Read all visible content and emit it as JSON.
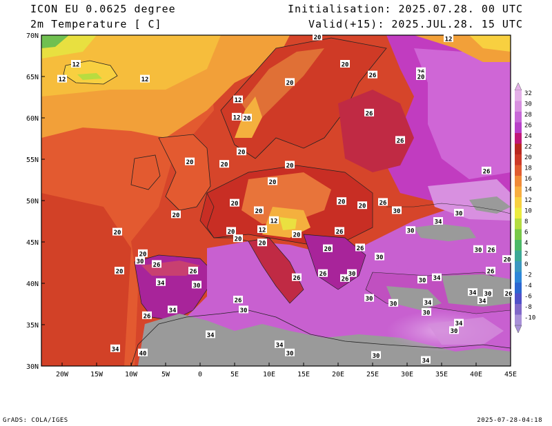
{
  "header": {
    "title_left_1": "ICON EU 0.0625 degree",
    "title_left_2": "2m Temperature [ C]",
    "title_right_1": "Initialisation: 2025.07.28. 00 UTC",
    "title_right_2": "Valid(+15): 2025.JUL.28. 15 UTC"
  },
  "footer": {
    "credit": "GrADS: COLA/IGES",
    "timestamp": "2025-07-28-04:18"
  },
  "map": {
    "lon_range": [
      -23,
      45
    ],
    "lat_range": [
      30,
      70
    ],
    "lon_ticks": [
      "20W",
      "15W",
      "10W",
      "5W",
      "0",
      "5E",
      "10E",
      "15E",
      "20E",
      "25E",
      "30E",
      "35E",
      "40E",
      "45E"
    ],
    "lat_ticks": [
      "70N",
      "65N",
      "60N",
      "55N",
      "50N",
      "45N",
      "40N",
      "35N",
      "30N"
    ],
    "colorbar": {
      "levels": [
        "32",
        "30",
        "28",
        "26",
        "24",
        "22",
        "20",
        "18",
        "16",
        "14",
        "12",
        "10",
        "8",
        "6",
        "4",
        "2",
        "0",
        "-2",
        "-4",
        "-6",
        "-8",
        "-10"
      ],
      "colors": [
        "#e4b0e8",
        "#d890e0",
        "#c868d8",
        "#b840c8",
        "#c01878",
        "#b82820",
        "#cc3a28",
        "#e05c30",
        "#f08a38",
        "#f8ae40",
        "#f8d040",
        "#ecec40",
        "#b4dc40",
        "#78c848",
        "#4cb868",
        "#3ca896",
        "#3c98c0",
        "#2e86d8",
        "#2c66d0",
        "#5050c8",
        "#8068c8",
        "#a890d8"
      ]
    },
    "contour_labels": [
      {
        "v": "20",
        "lon": 17,
        "lat": 69.8
      },
      {
        "v": "12",
        "lon": 36,
        "lat": 69.6
      },
      {
        "v": "20",
        "lon": 21,
        "lat": 66.5
      },
      {
        "v": "26",
        "lon": 25,
        "lat": 65.2
      },
      {
        "v": "26",
        "lon": 32,
        "lat": 65.6
      },
      {
        "v": "20",
        "lon": 32,
        "lat": 65
      },
      {
        "v": "12",
        "lon": -18,
        "lat": 66.5
      },
      {
        "v": "12",
        "lon": -20,
        "lat": 64.7
      },
      {
        "v": "12",
        "lon": -8,
        "lat": 64.7
      },
      {
        "v": "20",
        "lon": 13,
        "lat": 64.3
      },
      {
        "v": "12",
        "lon": 5.5,
        "lat": 62.2
      },
      {
        "v": "12",
        "lon": 5.3,
        "lat": 60.1
      },
      {
        "v": "20",
        "lon": 6.8,
        "lat": 60
      },
      {
        "v": "26",
        "lon": 24.5,
        "lat": 60.6
      },
      {
        "v": "26",
        "lon": 29,
        "lat": 57.3
      },
      {
        "v": "20",
        "lon": 6,
        "lat": 55.9
      },
      {
        "v": "20",
        "lon": -1.5,
        "lat": 54.7
      },
      {
        "v": "20",
        "lon": 3.5,
        "lat": 54.4
      },
      {
        "v": "20",
        "lon": 13,
        "lat": 54.3
      },
      {
        "v": "26",
        "lon": 41.5,
        "lat": 53.6
      },
      {
        "v": "20",
        "lon": 10.5,
        "lat": 52.3
      },
      {
        "v": "26",
        "lon": 26.5,
        "lat": 49.8
      },
      {
        "v": "30",
        "lon": 28.5,
        "lat": 48.8
      },
      {
        "v": "30",
        "lon": 37.5,
        "lat": 48.5
      },
      {
        "v": "20",
        "lon": 20.5,
        "lat": 49.9
      },
      {
        "v": "20",
        "lon": 5,
        "lat": 49.7
      },
      {
        "v": "20",
        "lon": 8.5,
        "lat": 48.8
      },
      {
        "v": "20",
        "lon": 23.5,
        "lat": 49.4
      },
      {
        "v": "12",
        "lon": 10.7,
        "lat": 47.6
      },
      {
        "v": "20",
        "lon": -3.5,
        "lat": 48.3
      },
      {
        "v": "34",
        "lon": 34.5,
        "lat": 47.5
      },
      {
        "v": "30",
        "lon": 30.5,
        "lat": 46.4
      },
      {
        "v": "20",
        "lon": -12,
        "lat": 46.2
      },
      {
        "v": "20",
        "lon": 4.5,
        "lat": 46.3
      },
      {
        "v": "12",
        "lon": 9,
        "lat": 46.5
      },
      {
        "v": "20",
        "lon": 14,
        "lat": 45.9
      },
      {
        "v": "20",
        "lon": 5.5,
        "lat": 45.4
      },
      {
        "v": "26",
        "lon": 20.2,
        "lat": 46.3
      },
      {
        "v": "20",
        "lon": 9,
        "lat": 44.9
      },
      {
        "v": "26",
        "lon": 23.2,
        "lat": 44.3
      },
      {
        "v": "20",
        "lon": 18.5,
        "lat": 44.2
      },
      {
        "v": "30",
        "lon": 40.3,
        "lat": 44.1
      },
      {
        "v": "26",
        "lon": 42.2,
        "lat": 44.1
      },
      {
        "v": "20",
        "lon": -8.3,
        "lat": 43.6
      },
      {
        "v": "30",
        "lon": -8.7,
        "lat": 42.7
      },
      {
        "v": "26",
        "lon": -6.3,
        "lat": 42.3
      },
      {
        "v": "30",
        "lon": 26,
        "lat": 43.2
      },
      {
        "v": "20",
        "lon": 44.5,
        "lat": 42.9
      },
      {
        "v": "20",
        "lon": -11.7,
        "lat": 41.5
      },
      {
        "v": "26",
        "lon": -1,
        "lat": 41.5
      },
      {
        "v": "26",
        "lon": 17.8,
        "lat": 41.2
      },
      {
        "v": "26",
        "lon": 21,
        "lat": 40.6
      },
      {
        "v": "30",
        "lon": 22,
        "lat": 41.2
      },
      {
        "v": "26",
        "lon": 42.1,
        "lat": 41.5
      },
      {
        "v": "34",
        "lon": -5.7,
        "lat": 40.1
      },
      {
        "v": "30",
        "lon": -0.5,
        "lat": 39.8
      },
      {
        "v": "26",
        "lon": 14,
        "lat": 40.7
      },
      {
        "v": "30",
        "lon": 32.2,
        "lat": 40.4
      },
      {
        "v": "34",
        "lon": 34.3,
        "lat": 40.7
      },
      {
        "v": "34",
        "lon": 39.5,
        "lat": 38.9
      },
      {
        "v": "30",
        "lon": 41.7,
        "lat": 38.8
      },
      {
        "v": "26",
        "lon": 44.7,
        "lat": 38.8
      },
      {
        "v": "34",
        "lon": 40.9,
        "lat": 37.9
      },
      {
        "v": "26",
        "lon": 5.5,
        "lat": 38
      },
      {
        "v": "30",
        "lon": 24.5,
        "lat": 38.2
      },
      {
        "v": "30",
        "lon": 28,
        "lat": 37.6
      },
      {
        "v": "34",
        "lon": 33,
        "lat": 37.7
      },
      {
        "v": "30",
        "lon": 6.3,
        "lat": 36.8
      },
      {
        "v": "34",
        "lon": -4,
        "lat": 36.8
      },
      {
        "v": "26",
        "lon": -7.7,
        "lat": 36.1
      },
      {
        "v": "30",
        "lon": 32.8,
        "lat": 36.5
      },
      {
        "v": "34",
        "lon": 37.5,
        "lat": 35.2
      },
      {
        "v": "30",
        "lon": 36.8,
        "lat": 34.3
      },
      {
        "v": "34",
        "lon": 1.5,
        "lat": 33.8
      },
      {
        "v": "34",
        "lon": 11.5,
        "lat": 32.6
      },
      {
        "v": "34",
        "lon": -12.3,
        "lat": 32.1
      },
      {
        "v": "40",
        "lon": -8.3,
        "lat": 31.6
      },
      {
        "v": "30",
        "lon": 13,
        "lat": 31.6
      },
      {
        "v": "30",
        "lon": 25.5,
        "lat": 31.3
      },
      {
        "v": "34",
        "lon": 32.7,
        "lat": 30.7
      }
    ]
  }
}
